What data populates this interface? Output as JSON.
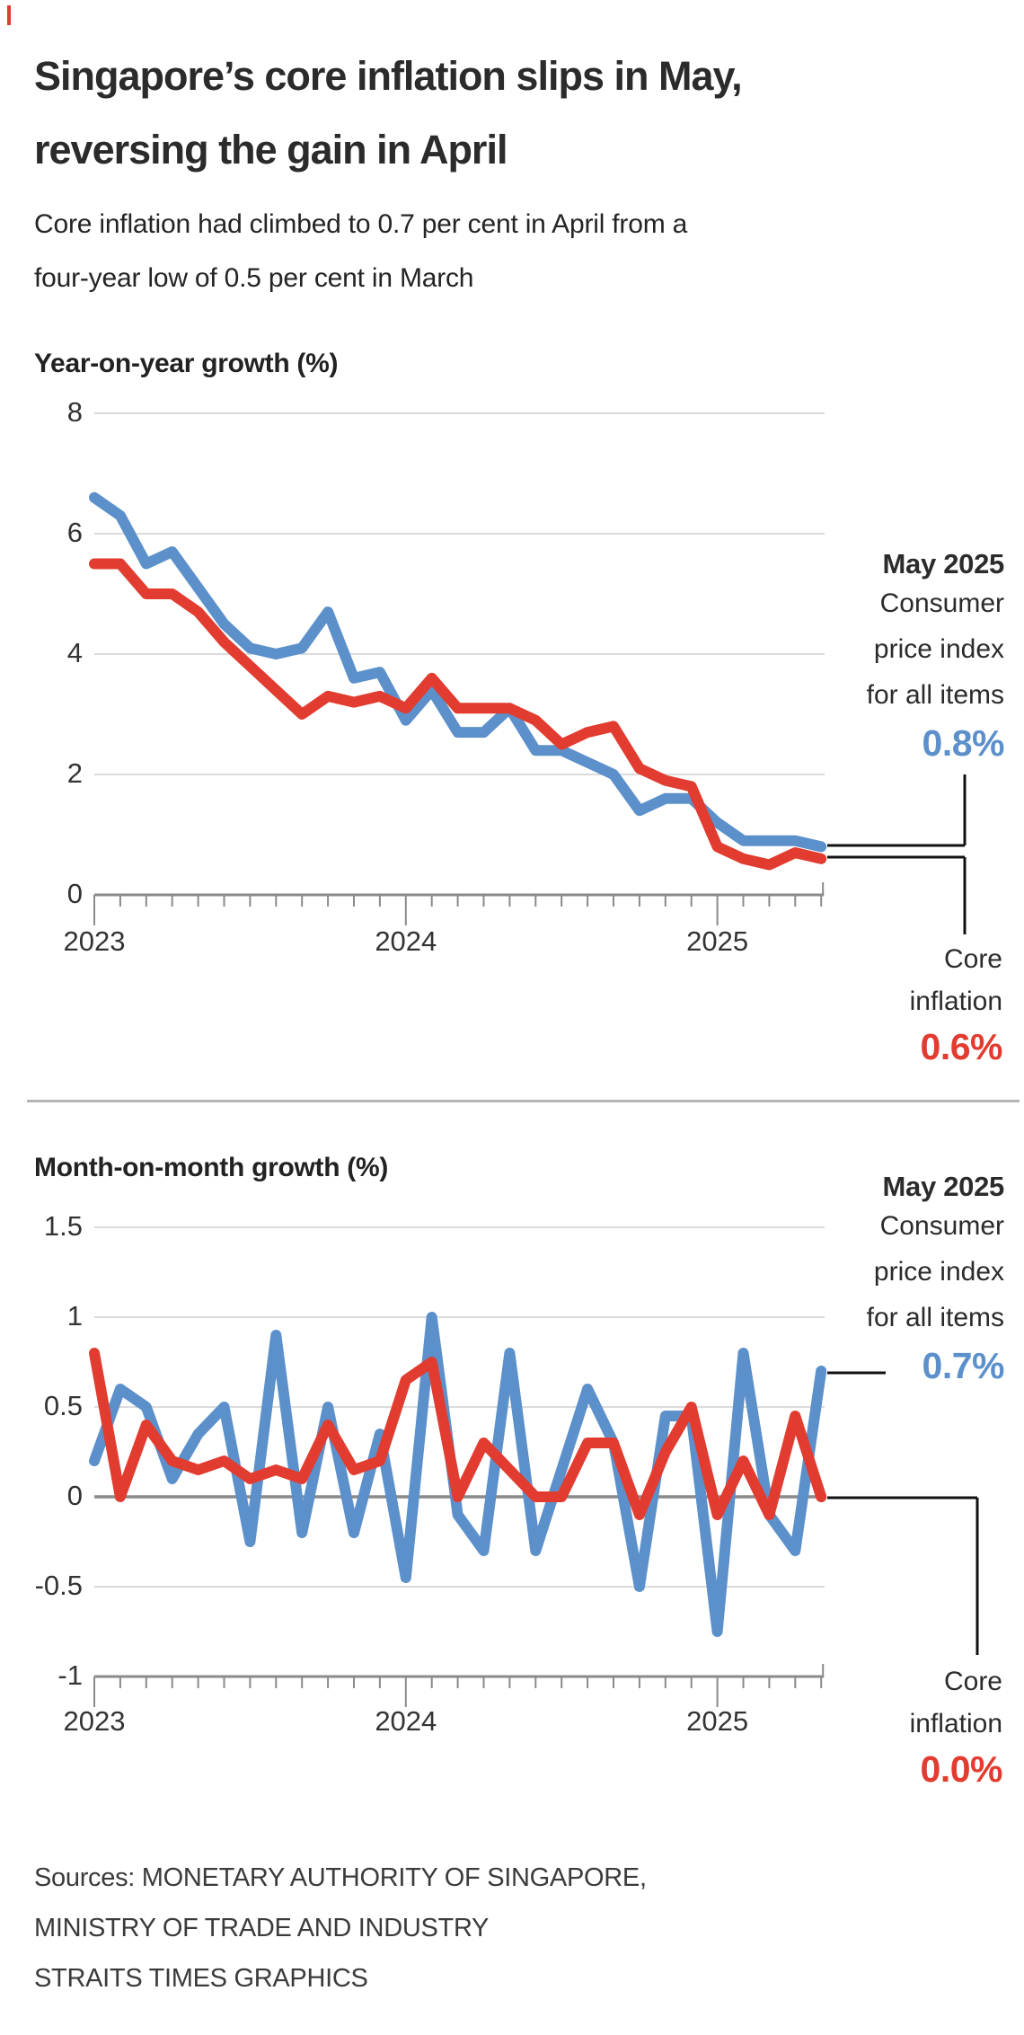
{
  "header": {
    "title_line1": "Singapore’s core inflation slips in May,",
    "title_line2": "reversing the gain in April",
    "subtitle_line1": "Core inflation had climbed to 0.7 per cent in April from a",
    "subtitle_line2": "four-year low of 0.5 per cent in March"
  },
  "colors": {
    "cpi_blue": "#5c90cb",
    "core_red": "#e23c30",
    "grid": "#cfcfcf",
    "axis": "#8a8a8a",
    "callout": "#111111",
    "divider": "#b5b5b5"
  },
  "chart_data": [
    {
      "type": "line",
      "title": "Year-on-year growth (%)",
      "ylim": [
        0,
        8
      ],
      "grid": "on",
      "x_labels": [
        "2023",
        "2024",
        "2025"
      ],
      "y_ticks": [
        {
          "value": 8,
          "label": "8"
        },
        {
          "value": 6,
          "label": "6"
        },
        {
          "value": 4,
          "label": "4"
        },
        {
          "value": 2,
          "label": "2"
        },
        {
          "value": 0,
          "label": "0"
        }
      ],
      "categories": [
        "Jan 2023",
        "Feb 2023",
        "Mar 2023",
        "Apr 2023",
        "May 2023",
        "Jun 2023",
        "Jul 2023",
        "Aug 2023",
        "Sep 2023",
        "Oct 2023",
        "Nov 2023",
        "Dec 2023",
        "Jan 2024",
        "Feb 2024",
        "Mar 2024",
        "Apr 2024",
        "May 2024",
        "Jun 2024",
        "Jul 2024",
        "Aug 2024",
        "Sep 2024",
        "Oct 2024",
        "Nov 2024",
        "Dec 2024",
        "Jan 2025",
        "Feb 2025",
        "Mar 2025",
        "Apr 2025",
        "May 2025"
      ],
      "series": [
        {
          "name": "Consumer price index for all items",
          "color_key": "cpi_blue",
          "values": [
            6.6,
            6.3,
            5.5,
            5.7,
            5.1,
            4.5,
            4.1,
            4.0,
            4.1,
            4.7,
            3.6,
            3.7,
            2.9,
            3.4,
            2.7,
            2.7,
            3.1,
            2.4,
            2.4,
            2.2,
            2.0,
            1.4,
            1.6,
            1.6,
            1.2,
            0.9,
            0.9,
            0.9,
            0.8
          ]
        },
        {
          "name": "Core inflation",
          "color_key": "core_red",
          "values": [
            5.5,
            5.5,
            5.0,
            5.0,
            4.7,
            4.2,
            3.8,
            3.4,
            3.0,
            3.3,
            3.2,
            3.3,
            3.1,
            3.6,
            3.1,
            3.1,
            3.1,
            2.9,
            2.5,
            2.7,
            2.8,
            2.1,
            1.9,
            1.8,
            0.8,
            0.6,
            0.5,
            0.7,
            0.6
          ]
        }
      ],
      "annotation": {
        "heading": "May 2025",
        "label_line1": "Consumer",
        "label_line2": "price index",
        "label_line3": "for all items",
        "cpi_value": "0.8%",
        "core_label_line1": "Core",
        "core_label_line2": "inflation",
        "core_value": "0.6%"
      }
    },
    {
      "type": "line",
      "title": "Month-on-month growth (%)",
      "ylim": [
        -1,
        1.5
      ],
      "grid": "on",
      "x_labels": [
        "2023",
        "2024",
        "2025"
      ],
      "y_ticks": [
        {
          "value": 1.5,
          "label": "1.5"
        },
        {
          "value": 1,
          "label": "1"
        },
        {
          "value": 0.5,
          "label": "0.5"
        },
        {
          "value": 0,
          "label": "0"
        },
        {
          "value": -0.5,
          "label": "-0.5"
        },
        {
          "value": -1,
          "label": "-1"
        }
      ],
      "categories": [
        "Jan 2023",
        "Feb 2023",
        "Mar 2023",
        "Apr 2023",
        "May 2023",
        "Jun 2023",
        "Jul 2023",
        "Aug 2023",
        "Sep 2023",
        "Oct 2023",
        "Nov 2023",
        "Dec 2023",
        "Jan 2024",
        "Feb 2024",
        "Mar 2024",
        "Apr 2024",
        "May 2024",
        "Jun 2024",
        "Jul 2024",
        "Aug 2024",
        "Sep 2024",
        "Oct 2024",
        "Nov 2024",
        "Dec 2024",
        "Jan 2025",
        "Feb 2025",
        "Mar 2025",
        "Apr 2025",
        "May 2025"
      ],
      "series": [
        {
          "name": "Consumer price index for all items",
          "color_key": "cpi_blue",
          "values": [
            0.2,
            0.6,
            0.5,
            0.1,
            0.35,
            0.5,
            -0.25,
            0.9,
            -0.2,
            0.5,
            -0.2,
            0.35,
            -0.45,
            1.0,
            -0.1,
            -0.3,
            0.8,
            -0.3,
            0.15,
            0.6,
            0.3,
            -0.5,
            0.45,
            0.45,
            -0.75,
            0.8,
            -0.1,
            -0.3,
            0.7
          ]
        },
        {
          "name": "Core inflation",
          "color_key": "core_red",
          "values": [
            0.8,
            0.0,
            0.4,
            0.2,
            0.15,
            0.2,
            0.1,
            0.15,
            0.1,
            0.4,
            0.15,
            0.2,
            0.65,
            0.75,
            0.0,
            0.3,
            0.15,
            0.0,
            0.0,
            0.3,
            0.3,
            -0.1,
            0.25,
            0.5,
            -0.1,
            0.2,
            -0.1,
            0.45,
            0.0
          ]
        }
      ],
      "annotation": {
        "heading": "May 2025",
        "label_line1": "Consumer",
        "label_line2": "price index",
        "label_line3": "for all items",
        "cpi_value": "0.7%",
        "core_label_line1": "Core",
        "core_label_line2": "inflation",
        "core_value": "0.0%"
      }
    }
  ],
  "source": {
    "line1": "Sources: MONETARY AUTHORITY OF SINGAPORE,",
    "line2": "MINISTRY OF TRADE AND INDUSTRY",
    "line3": "STRAITS TIMES GRAPHICS"
  }
}
